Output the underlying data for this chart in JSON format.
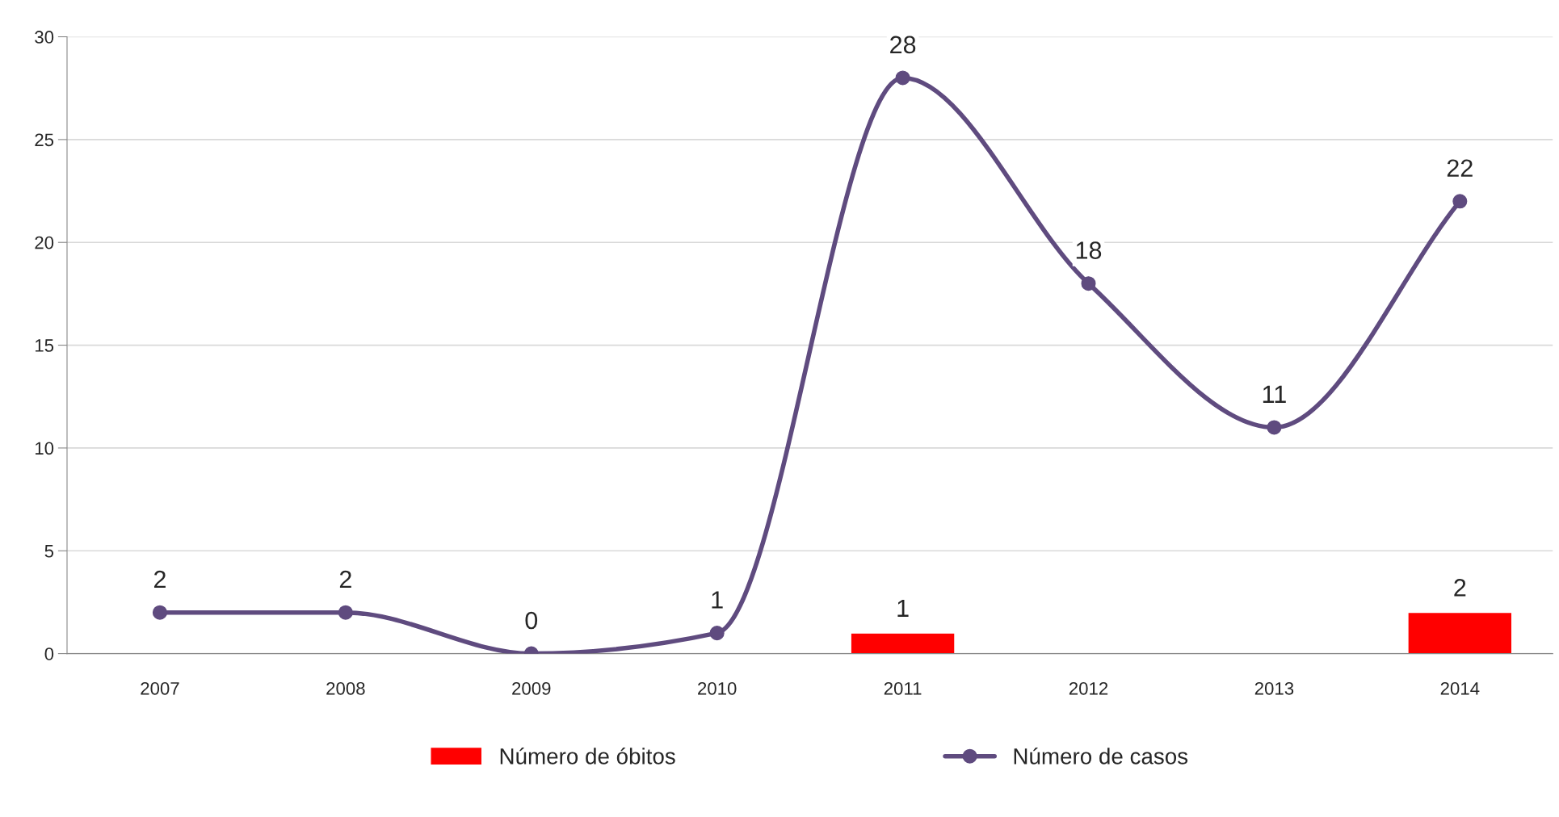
{
  "chart_data": {
    "type": "bar",
    "categories": [
      "2007",
      "2008",
      "2009",
      "2010",
      "2011",
      "2012",
      "2013",
      "2014"
    ],
    "series": [
      {
        "name": "Número de óbitos",
        "color": "#ff0000",
        "values": [
          null,
          null,
          null,
          null,
          1,
          null,
          null,
          2
        ],
        "value_labels": [
          null,
          null,
          null,
          null,
          "1",
          null,
          null,
          "2"
        ]
      },
      {
        "name": "Número de casos",
        "type": "line",
        "color": "#5f4b7f",
        "marker": "circle",
        "values": [
          2,
          2,
          0,
          1,
          28,
          18,
          11,
          22
        ],
        "data_labels": true
      }
    ],
    "ylim": [
      0,
      30
    ],
    "yticks": [
      0,
      5,
      10,
      15,
      20,
      25,
      30
    ],
    "grid": "y",
    "legend": "bottom"
  }
}
